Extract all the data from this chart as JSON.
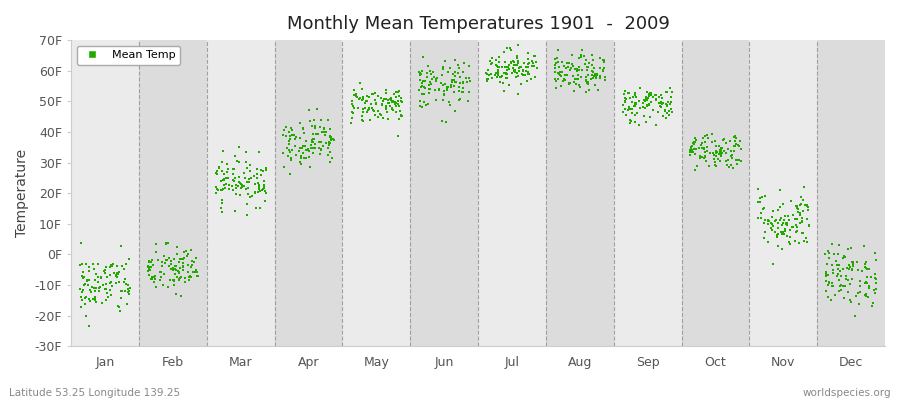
{
  "title": "Monthly Mean Temperatures 1901  -  2009",
  "ylabel": "Temperature",
  "xlabel_left": "Latitude 53.25 Longitude 139.25",
  "xlabel_right": "worldspecies.org",
  "legend_label": "Mean Temp",
  "ylim": [
    -30,
    70
  ],
  "yticks": [
    -30,
    -20,
    -10,
    0,
    10,
    20,
    30,
    40,
    50,
    60,
    70
  ],
  "ytick_labels": [
    "-30F",
    "-20F",
    "-10F",
    "0F",
    "10F",
    "20F",
    "30F",
    "40F",
    "50F",
    "60F",
    "70F"
  ],
  "months": [
    "Jan",
    "Feb",
    "Mar",
    "Apr",
    "May",
    "Jun",
    "Jul",
    "Aug",
    "Sep",
    "Oct",
    "Nov",
    "Dec"
  ],
  "month_means": [
    -10,
    -5,
    24,
    37,
    49,
    55,
    61,
    59,
    49,
    34,
    11,
    -7
  ],
  "month_stds": [
    5,
    4,
    4,
    4,
    3,
    4,
    3,
    3,
    3,
    3,
    5,
    5
  ],
  "dot_color": "#22aa00",
  "bg_stripe_light": "#ebebeb",
  "bg_stripe_dark": "#dcdcdc",
  "plot_bg": "#ffffff",
  "grid_color": "#888888",
  "n_years": 109,
  "seed": 42,
  "dot_size": 4
}
